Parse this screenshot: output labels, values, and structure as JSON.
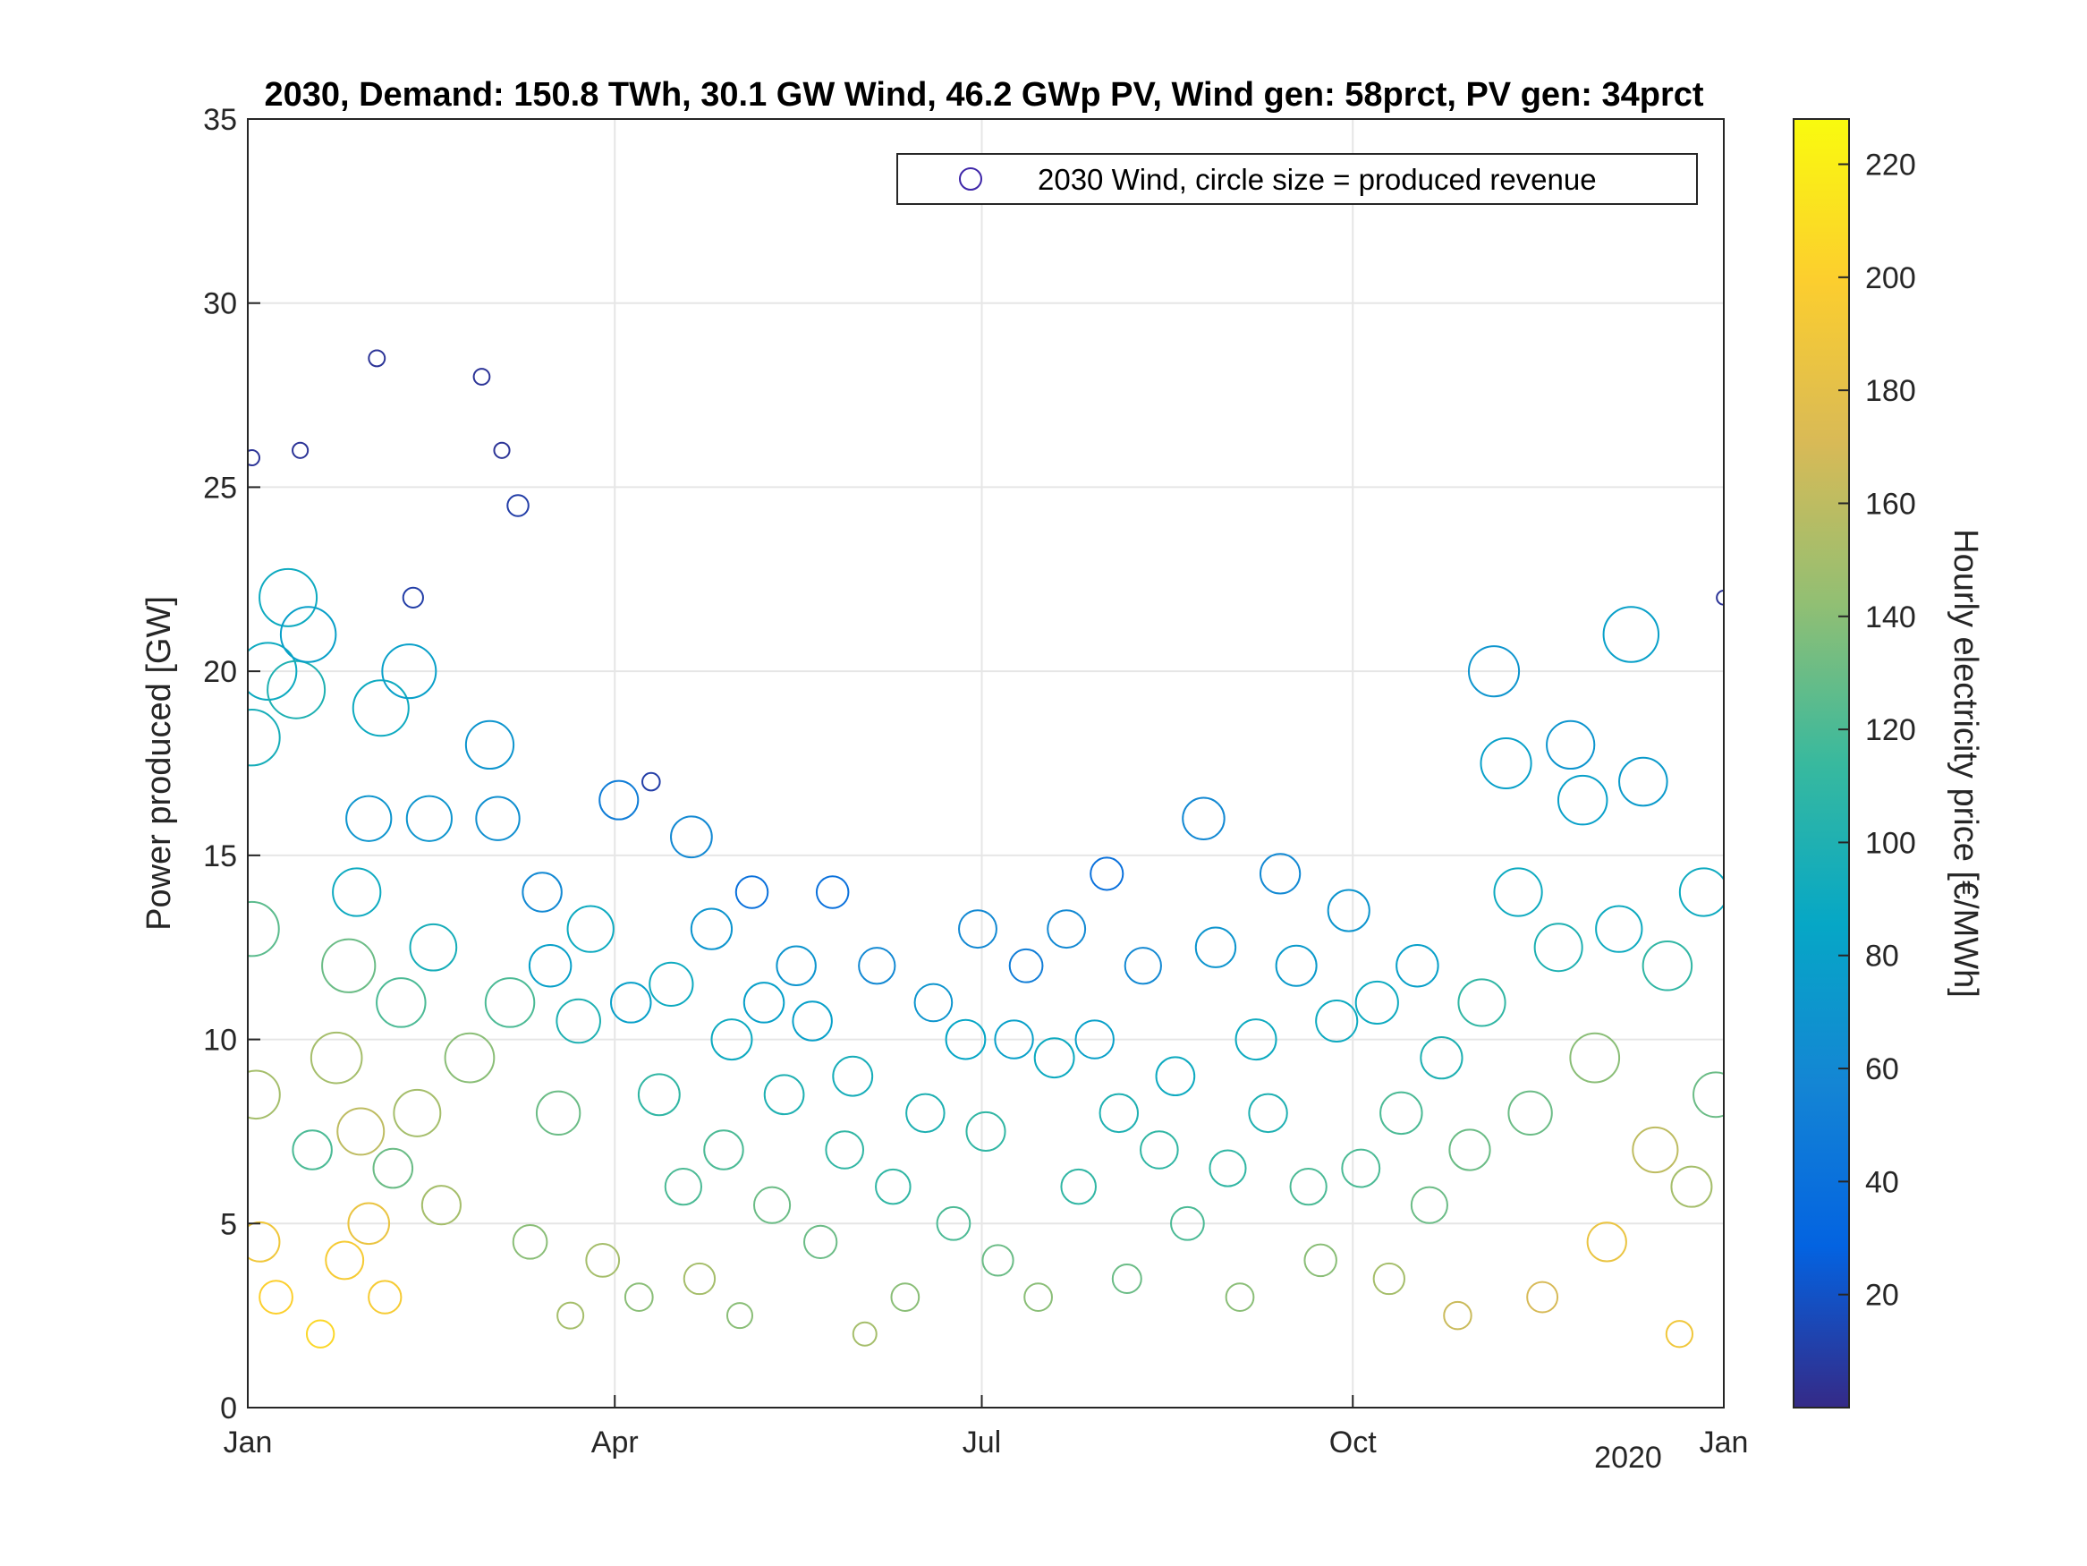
{
  "chart_data": {
    "type": "scatter",
    "title": "2030, Demand: 150.8 TWh, 30.1 GW Wind, 46.2 GWp PV, Wind gen: 58prct, PV gen: 34prct",
    "xlabel": "",
    "ylabel": "Power produced [GW]",
    "x_ticks": [
      "Jan",
      "Apr",
      "Jul",
      "Oct",
      "Jan"
    ],
    "x_year_label": "2020",
    "xlim_days": [
      0,
      366
    ],
    "ylim": [
      0,
      35
    ],
    "y_ticks": [
      0,
      5,
      10,
      15,
      20,
      25,
      30,
      35
    ],
    "grid": true,
    "legend": {
      "label": "2030 Wind, circle size = produced revenue",
      "placement": "top-right"
    },
    "colorbar": {
      "label": "Hourly electricity price [€/MWh]",
      "range": [
        0,
        228
      ],
      "ticks": [
        20,
        40,
        60,
        80,
        100,
        120,
        140,
        160,
        180,
        200,
        220
      ],
      "colormap": "parula",
      "colors": [
        "#352a87",
        "#0363e1",
        "#1485d4",
        "#06a7c6",
        "#38b99e",
        "#92bf73",
        "#d9ba56",
        "#fcce2e",
        "#f9fb0e"
      ]
    },
    "series": [
      {
        "name": "2030 Wind, circle size = produced revenue",
        "points_day_gw_price": [
          [
            1,
            25.8,
            5
          ],
          [
            1,
            18.2,
            95
          ],
          [
            1,
            13.0,
            125
          ],
          [
            2,
            8.5,
            150
          ],
          [
            3,
            4.5,
            190
          ],
          [
            5,
            20.0,
            90
          ],
          [
            7,
            3.0,
            200
          ],
          [
            10,
            22.0,
            90
          ],
          [
            12,
            19.5,
            100
          ],
          [
            13,
            26.0,
            5
          ],
          [
            15,
            21.0,
            80
          ],
          [
            16,
            7.0,
            120
          ],
          [
            18,
            2.0,
            205
          ],
          [
            22,
            9.5,
            150
          ],
          [
            24,
            4.0,
            195
          ],
          [
            25,
            12.0,
            130
          ],
          [
            27,
            14.0,
            90
          ],
          [
            28,
            7.5,
            160
          ],
          [
            30,
            5.0,
            185
          ],
          [
            30,
            16.0,
            70
          ],
          [
            32,
            28.5,
            5
          ],
          [
            33,
            19.0,
            90
          ],
          [
            34,
            3.0,
            195
          ],
          [
            36,
            6.5,
            130
          ],
          [
            38,
            11.0,
            120
          ],
          [
            40,
            20.0,
            80
          ],
          [
            41,
            22.0,
            10
          ],
          [
            42,
            8.0,
            150
          ],
          [
            45,
            16.0,
            70
          ],
          [
            46,
            12.5,
            95
          ],
          [
            48,
            5.5,
            150
          ],
          [
            55,
            9.5,
            140
          ],
          [
            58,
            28.0,
            5
          ],
          [
            60,
            18.0,
            70
          ],
          [
            62,
            16.0,
            65
          ],
          [
            63,
            26.0,
            5
          ],
          [
            65,
            11.0,
            120
          ],
          [
            67,
            24.5,
            10
          ],
          [
            70,
            4.5,
            140
          ],
          [
            73,
            14.0,
            60
          ],
          [
            75,
            12.0,
            80
          ],
          [
            77,
            8.0,
            130
          ],
          [
            80,
            2.5,
            150
          ],
          [
            82,
            10.5,
            100
          ],
          [
            85,
            13.0,
            90
          ],
          [
            88,
            4.0,
            150
          ],
          [
            92,
            16.5,
            50
          ],
          [
            95,
            11.0,
            80
          ],
          [
            97,
            3.0,
            140
          ],
          [
            100,
            17.0,
            10
          ],
          [
            102,
            8.5,
            110
          ],
          [
            105,
            11.5,
            90
          ],
          [
            108,
            6.0,
            120
          ],
          [
            110,
            15.5,
            60
          ],
          [
            112,
            3.5,
            150
          ],
          [
            115,
            13.0,
            70
          ],
          [
            118,
            7.0,
            120
          ],
          [
            120,
            10.0,
            90
          ],
          [
            122,
            2.5,
            140
          ],
          [
            125,
            14.0,
            40
          ],
          [
            128,
            11.0,
            80
          ],
          [
            130,
            5.5,
            130
          ],
          [
            133,
            8.5,
            100
          ],
          [
            136,
            12.0,
            70
          ],
          [
            140,
            10.5,
            80
          ],
          [
            142,
            4.5,
            130
          ],
          [
            145,
            14.0,
            40
          ],
          [
            148,
            7.0,
            110
          ],
          [
            150,
            9.0,
            95
          ],
          [
            153,
            2.0,
            150
          ],
          [
            156,
            12.0,
            60
          ],
          [
            160,
            6.0,
            110
          ],
          [
            163,
            3.0,
            140
          ],
          [
            168,
            8.0,
            100
          ],
          [
            170,
            11.0,
            70
          ],
          [
            175,
            5.0,
            120
          ],
          [
            178,
            10.0,
            85
          ],
          [
            181,
            13.0,
            60
          ],
          [
            183,
            7.5,
            110
          ],
          [
            186,
            4.0,
            130
          ],
          [
            190,
            10.0,
            80
          ],
          [
            193,
            12.0,
            50
          ],
          [
            196,
            3.0,
            140
          ],
          [
            200,
            9.5,
            90
          ],
          [
            203,
            13.0,
            60
          ],
          [
            206,
            6.0,
            110
          ],
          [
            210,
            10.0,
            80
          ],
          [
            213,
            14.5,
            40
          ],
          [
            216,
            8.0,
            100
          ],
          [
            218,
            3.5,
            130
          ],
          [
            222,
            12.0,
            60
          ],
          [
            226,
            7.0,
            110
          ],
          [
            230,
            9.0,
            90
          ],
          [
            233,
            5.0,
            120
          ],
          [
            237,
            16.0,
            60
          ],
          [
            240,
            12.5,
            70
          ],
          [
            243,
            6.5,
            110
          ],
          [
            246,
            3.0,
            140
          ],
          [
            250,
            10.0,
            90
          ],
          [
            253,
            8.0,
            100
          ],
          [
            256,
            14.5,
            60
          ],
          [
            260,
            12.0,
            75
          ],
          [
            263,
            6.0,
            120
          ],
          [
            266,
            4.0,
            140
          ],
          [
            270,
            10.5,
            90
          ],
          [
            273,
            13.5,
            70
          ],
          [
            276,
            6.5,
            120
          ],
          [
            280,
            11.0,
            90
          ],
          [
            283,
            3.5,
            150
          ],
          [
            286,
            8.0,
            120
          ],
          [
            290,
            12.0,
            80
          ],
          [
            293,
            5.5,
            130
          ],
          [
            296,
            9.5,
            100
          ],
          [
            300,
            2.5,
            165
          ],
          [
            303,
            7.0,
            130
          ],
          [
            306,
            11.0,
            110
          ],
          [
            309,
            20.0,
            70
          ],
          [
            312,
            17.5,
            80
          ],
          [
            315,
            14.0,
            90
          ],
          [
            318,
            8.0,
            130
          ],
          [
            321,
            3.0,
            170
          ],
          [
            325,
            12.5,
            100
          ],
          [
            328,
            18.0,
            70
          ],
          [
            331,
            16.5,
            80
          ],
          [
            334,
            9.5,
            140
          ],
          [
            337,
            4.5,
            185
          ],
          [
            340,
            13.0,
            90
          ],
          [
            343,
            21.0,
            80
          ],
          [
            346,
            17.0,
            75
          ],
          [
            349,
            7.0,
            160
          ],
          [
            352,
            12.0,
            110
          ],
          [
            355,
            2.0,
            190
          ],
          [
            358,
            6.0,
            150
          ],
          [
            361,
            14.0,
            90
          ],
          [
            364,
            8.5,
            130
          ],
          [
            366,
            22.0,
            5
          ]
        ]
      }
    ]
  }
}
